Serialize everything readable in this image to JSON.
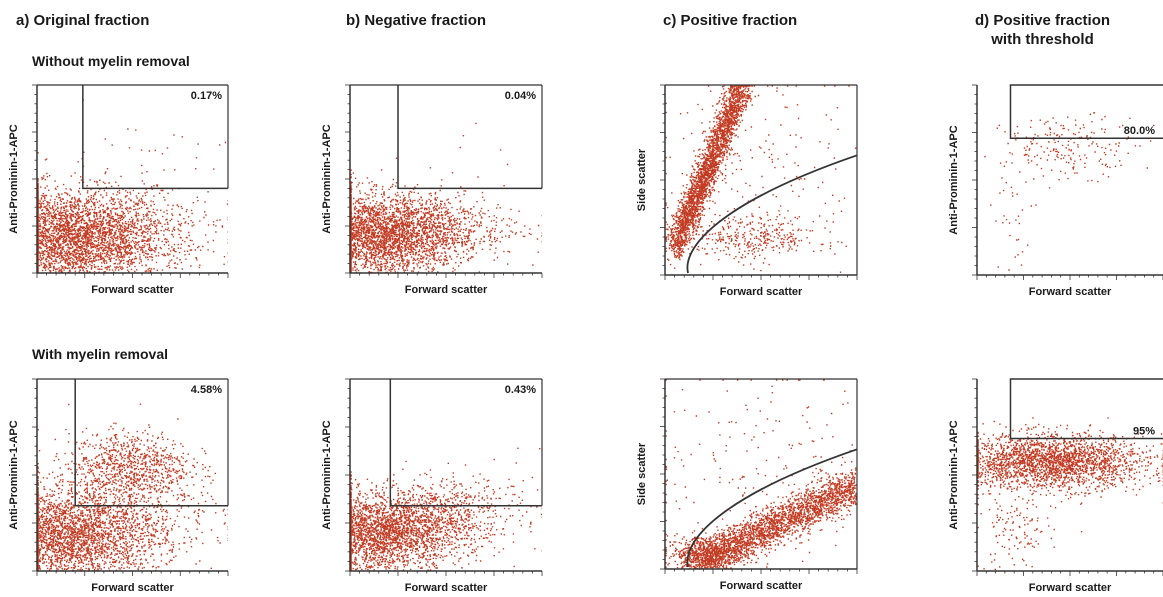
{
  "column_titles": {
    "a": "a) Original fraction",
    "b": "b) Negative fraction",
    "c": "c) Positive fraction",
    "d_line1": "d) Positive fraction",
    "d_line2": "with threshold"
  },
  "row_titles": {
    "top": "Without myelin removal",
    "bottom": "With myelin removal"
  },
  "colors": {
    "dots": "#c23b22",
    "axis": "#333333",
    "gate": "#333333"
  },
  "chart_data": [
    {
      "id": "a-top",
      "type": "scatter",
      "xlabel": "Forward scatter",
      "ylabel": "Anti-Prominin-1-APC",
      "gate": "quadrant",
      "gate_value": "0.17%",
      "clusters": [
        {
          "cx": 0.15,
          "cy": 0.18,
          "sx": 0.25,
          "sy": 0.13,
          "n": 3500
        },
        {
          "cx": 0.45,
          "cy": 0.25,
          "sx": 0.25,
          "sy": 0.1,
          "n": 500
        },
        {
          "cx": 0.55,
          "cy": 0.62,
          "sx": 0.25,
          "sy": 0.1,
          "n": 35
        }
      ]
    },
    {
      "id": "b-top",
      "type": "scatter",
      "xlabel": "Forward scatter",
      "ylabel": "Anti-Prominin-1-APC",
      "gate": "quadrant",
      "gate_value": "0.04%",
      "clusters": [
        {
          "cx": 0.15,
          "cy": 0.2,
          "sx": 0.22,
          "sy": 0.11,
          "n": 3200
        },
        {
          "cx": 0.45,
          "cy": 0.25,
          "sx": 0.22,
          "sy": 0.08,
          "n": 400
        },
        {
          "cx": 0.6,
          "cy": 0.6,
          "sx": 0.2,
          "sy": 0.1,
          "n": 8
        }
      ]
    },
    {
      "id": "c-top",
      "type": "scatter",
      "xlabel": "Forward scatter",
      "ylabel": "Side scatter",
      "gate": "curve",
      "clusters": [
        {
          "cx": 0.22,
          "cy": 0.55,
          "sx": 0.06,
          "sy": 0.18,
          "n": 2600
        },
        {
          "cx": 0.45,
          "cy": 0.2,
          "sx": 0.18,
          "sy": 0.06,
          "n": 350
        },
        {
          "cx": 0.5,
          "cy": 0.5,
          "sx": 0.3,
          "sy": 0.3,
          "n": 200
        }
      ]
    },
    {
      "id": "d-top",
      "type": "scatter",
      "xlabel": "Forward scatter",
      "ylabel": "Anti-Prominin-1-APC",
      "gate": "box",
      "gate_value": "80.0%",
      "clusters": [
        {
          "cx": 0.5,
          "cy": 0.68,
          "sx": 0.18,
          "sy": 0.08,
          "n": 200
        },
        {
          "cx": 0.2,
          "cy": 0.35,
          "sx": 0.06,
          "sy": 0.2,
          "n": 40
        }
      ]
    },
    {
      "id": "a-bottom",
      "type": "scatter",
      "xlabel": "Forward scatter",
      "ylabel": "Anti-Prominin-1-APC",
      "gate": "quadrant",
      "gate_value": "4.58%",
      "clusters": [
        {
          "cx": 0.15,
          "cy": 0.18,
          "sx": 0.25,
          "sy": 0.12,
          "n": 3200
        },
        {
          "cx": 0.48,
          "cy": 0.55,
          "sx": 0.16,
          "sy": 0.09,
          "n": 900
        },
        {
          "cx": 0.5,
          "cy": 0.3,
          "sx": 0.3,
          "sy": 0.1,
          "n": 300
        }
      ]
    },
    {
      "id": "b-bottom",
      "type": "scatter",
      "xlabel": "Forward scatter",
      "ylabel": "Anti-Prominin-1-APC",
      "gate": "quadrant",
      "gate_value": "0.43%",
      "clusters": [
        {
          "cx": 0.15,
          "cy": 0.2,
          "sx": 0.22,
          "sy": 0.1,
          "n": 2800
        },
        {
          "cx": 0.45,
          "cy": 0.3,
          "sx": 0.22,
          "sy": 0.08,
          "n": 500
        },
        {
          "cx": 0.6,
          "cy": 0.45,
          "sx": 0.2,
          "sy": 0.08,
          "n": 60
        }
      ]
    },
    {
      "id": "c-bottom",
      "type": "scatter",
      "xlabel": "Forward scatter",
      "ylabel": "Side scatter",
      "gate": "curve",
      "clusters": [
        {
          "cx": 0.55,
          "cy": 0.25,
          "sx": 0.22,
          "sy": 0.08,
          "n": 2600
        },
        {
          "cx": 0.2,
          "cy": 0.08,
          "sx": 0.1,
          "sy": 0.05,
          "n": 500
        },
        {
          "cx": 0.5,
          "cy": 0.5,
          "sx": 0.3,
          "sy": 0.3,
          "n": 220
        }
      ]
    },
    {
      "id": "d-bottom",
      "type": "scatter",
      "xlabel": "Forward scatter",
      "ylabel": "Anti-Prominin-1-APC",
      "gate": "box",
      "gate_value": "95%",
      "clusters": [
        {
          "cx": 0.4,
          "cy": 0.57,
          "sx": 0.25,
          "sy": 0.07,
          "n": 2400
        },
        {
          "cx": 0.2,
          "cy": 0.2,
          "sx": 0.1,
          "sy": 0.1,
          "n": 120
        }
      ]
    }
  ]
}
